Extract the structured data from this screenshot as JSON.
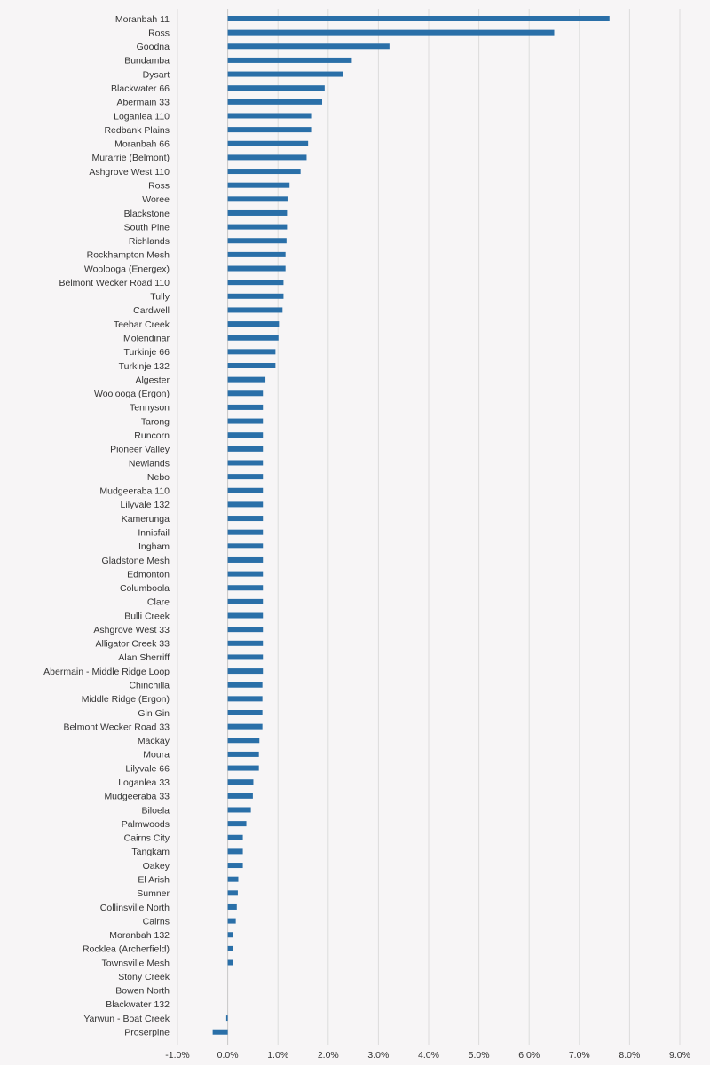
{
  "chart_data": {
    "type": "bar",
    "orientation": "horizontal",
    "title": "",
    "xlabel": "",
    "ylabel": "",
    "xlim": [
      -1.0,
      9.0
    ],
    "x_ticks": [
      "-1.0%",
      "0.0%",
      "1.0%",
      "2.0%",
      "3.0%",
      "4.0%",
      "5.0%",
      "6.0%",
      "7.0%",
      "8.0%",
      "9.0%"
    ],
    "x_tick_values": [
      -1,
      0,
      1,
      2,
      3,
      4,
      5,
      6,
      7,
      8,
      9
    ],
    "grid": "vertical",
    "legend": "none",
    "bar_color": "#2a6fa8",
    "background": "#f7f5f6",
    "categories": [
      "Moranbah 11",
      "Ross",
      "Goodna",
      "Bundamba",
      "Dysart",
      "Blackwater 66",
      "Abermain 33",
      "Loganlea 110",
      "Redbank Plains",
      "Moranbah 66",
      "Murarrie (Belmont)",
      "Ashgrove West 110",
      "Ross",
      "Woree",
      "Blackstone",
      "South Pine",
      "Richlands",
      "Rockhampton Mesh",
      "Woolooga (Energex)",
      "Belmont Wecker Road 110",
      "Tully",
      "Cardwell",
      "Teebar Creek",
      "Molendinar",
      "Turkinje 66",
      "Turkinje 132",
      "Algester",
      "Woolooga (Ergon)",
      "Tennyson",
      "Tarong",
      "Runcorn",
      "Pioneer Valley",
      "Newlands",
      "Nebo",
      "Mudgeeraba 110",
      "Lilyvale 132",
      "Kamerunga",
      "Innisfail",
      "Ingham",
      "Gladstone Mesh",
      "Edmonton",
      "Columboola",
      "Clare",
      "Bulli Creek",
      "Ashgrove West 33",
      "Alligator Creek 33",
      "Alan Sherriff",
      "Abermain - Middle Ridge Loop",
      "Chinchilla",
      "Middle Ridge (Ergon)",
      "Gin Gin",
      "Belmont Wecker Road 33",
      "Mackay",
      "Moura",
      "Lilyvale 66",
      "Loganlea 33",
      "Mudgeeraba 33",
      "Biloela",
      "Palmwoods",
      "Cairns City",
      "Tangkam",
      "Oakey",
      "El Arish",
      "Sumner",
      "Collinsville North",
      "Cairns",
      "Moranbah 132",
      "Rocklea (Archerfield)",
      "Townsville Mesh",
      "Stony Creek",
      "Bowen North",
      "Blackwater 132",
      "Yarwun - Boat Creek",
      "Proserpine"
    ],
    "values": [
      7.6,
      6.5,
      3.22,
      2.47,
      2.3,
      1.93,
      1.88,
      1.66,
      1.66,
      1.6,
      1.57,
      1.45,
      1.23,
      1.19,
      1.18,
      1.18,
      1.17,
      1.15,
      1.15,
      1.11,
      1.11,
      1.09,
      1.02,
      1.01,
      0.95,
      0.95,
      0.75,
      0.7,
      0.7,
      0.7,
      0.7,
      0.7,
      0.7,
      0.7,
      0.7,
      0.7,
      0.7,
      0.7,
      0.7,
      0.7,
      0.7,
      0.7,
      0.7,
      0.7,
      0.7,
      0.7,
      0.7,
      0.7,
      0.69,
      0.69,
      0.69,
      0.69,
      0.63,
      0.62,
      0.62,
      0.51,
      0.5,
      0.46,
      0.37,
      0.3,
      0.3,
      0.3,
      0.21,
      0.2,
      0.18,
      0.16,
      0.11,
      0.11,
      0.11,
      0.0,
      0.0,
      0.0,
      -0.03,
      -0.3
    ]
  }
}
